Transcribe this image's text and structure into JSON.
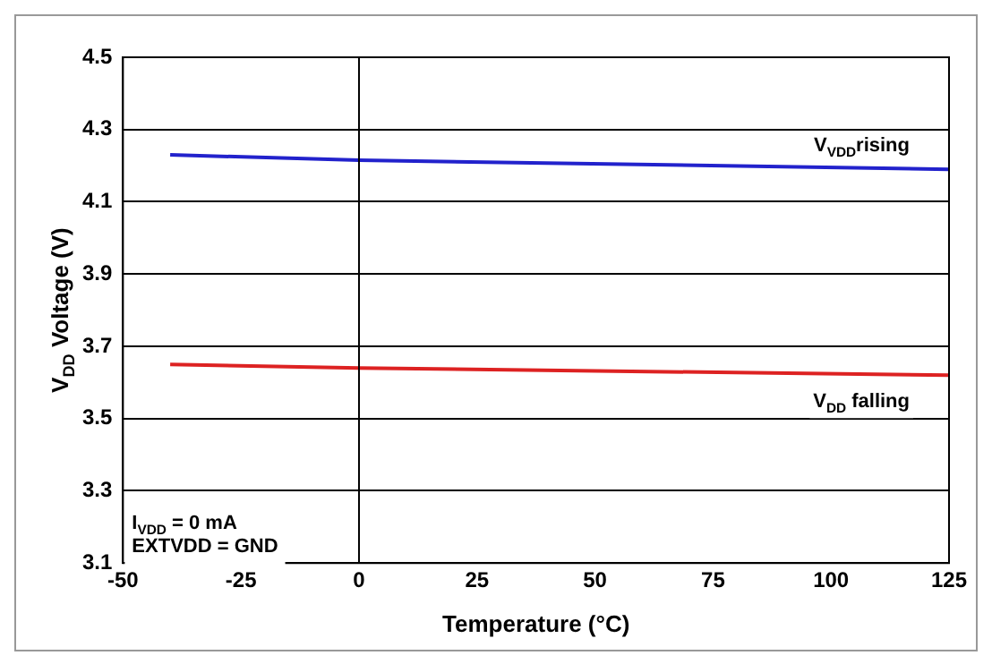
{
  "chart_data": {
    "type": "line",
    "xlabel": "Temperature (°C)",
    "ylabel": "V$_{DD}$ Voltage (V)",
    "x": [
      -40,
      0,
      125
    ],
    "series": [
      {
        "name": "V$_{VDD}$rising",
        "color": "#2222cc",
        "values": [
          4.23,
          4.215,
          4.19
        ]
      },
      {
        "name": "V$_{DD}$ falling",
        "color": "#dd2222",
        "values": [
          3.65,
          3.64,
          3.62
        ]
      }
    ],
    "xlim": [
      -50,
      125
    ],
    "xticks": [
      -50,
      -25,
      0,
      25,
      50,
      75,
      100,
      125
    ],
    "ylim": [
      3.1,
      4.5
    ],
    "yticks": [
      3.1,
      3.3,
      3.5,
      3.7,
      3.9,
      4.1,
      4.3,
      4.5
    ],
    "grid": "y",
    "legend": false,
    "ref_lines": [
      {
        "axis": "x",
        "value": 0
      }
    ],
    "annotations": [
      "I$_{VDD}$ = 0 mA",
      "EXTVDD = GND"
    ]
  }
}
